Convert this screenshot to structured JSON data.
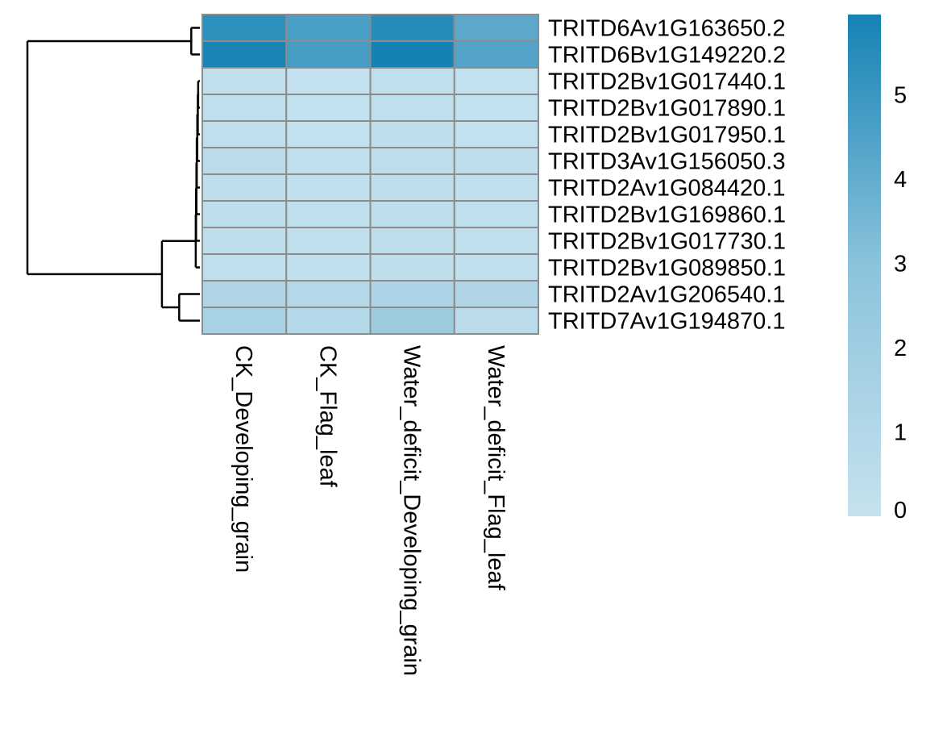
{
  "chart_data": {
    "type": "heatmap",
    "title": "",
    "columns": [
      "CK_Developing_grain",
      "CK_Flag_leaf",
      "Water_deficit_Developing_grain",
      "Water_deficit_Flag_leaf"
    ],
    "rows": [
      "TRITD6Av1G163650.2",
      "TRITD6Bv1G149220.2",
      "TRITD2Bv1G017440.1",
      "TRITD2Bv1G017890.1",
      "TRITD2Bv1G017950.1",
      "TRITD3Av1G156050.3",
      "TRITD2Av1G084420.1",
      "TRITD2Bv1G169860.1",
      "TRITD2Bv1G017730.1",
      "TRITD2Bv1G089850.1",
      "TRITD2Av1G206540.1",
      "TRITD7Av1G194870.1"
    ],
    "values": [
      [
        5.3,
        4.6,
        5.5,
        4.2
      ],
      [
        5.8,
        4.7,
        5.95,
        4.4
      ],
      [
        0.25,
        0.2,
        0.3,
        0.2
      ],
      [
        0.3,
        0.2,
        0.3,
        0.2
      ],
      [
        0.3,
        0.2,
        0.35,
        0.2
      ],
      [
        0.6,
        0.3,
        0.5,
        0.35
      ],
      [
        0.35,
        0.25,
        0.4,
        0.25
      ],
      [
        0.4,
        0.3,
        0.4,
        0.3
      ],
      [
        0.4,
        0.3,
        0.45,
        0.3
      ],
      [
        0.3,
        0.25,
        0.4,
        0.25
      ],
      [
        1.2,
        1.0,
        1.3,
        1.2
      ],
      [
        1.6,
        0.9,
        2.1,
        0.6
      ]
    ],
    "row_dendrogram": {
      "merges": [
        [
          -1,
          -2,
          0.05
        ],
        [
          -3,
          -4,
          0.01
        ],
        [
          -5,
          2,
          0.012
        ],
        [
          -6,
          3,
          0.015
        ],
        [
          -7,
          4,
          0.018
        ],
        [
          -8,
          5,
          0.02
        ],
        [
          -9,
          6,
          0.022
        ],
        [
          -10,
          7,
          0.024
        ],
        [
          -11,
          -12,
          0.12
        ],
        [
          8,
          9,
          0.22
        ],
        [
          1,
          10,
          1.0
        ]
      ],
      "max_height": 1.0
    },
    "legend": {
      "ticks": [
        0,
        1,
        2,
        3,
        4,
        5
      ],
      "min": 0,
      "max": 5.95,
      "placement": "right"
    },
    "color_scale": {
      "low": "#c6e2ee",
      "mid": "#8cc3dc",
      "high": "#1482b3"
    },
    "cell_border_color": "#8c8c8c"
  }
}
